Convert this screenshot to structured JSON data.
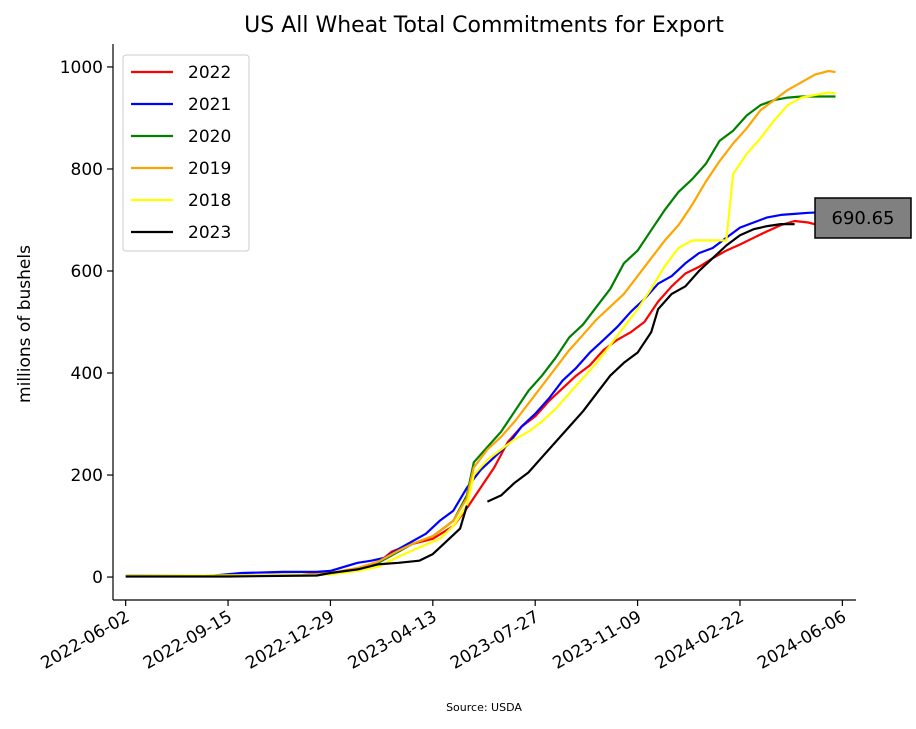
{
  "chart_data": {
    "type": "line",
    "title": "US All Wheat Total Commitments for Export",
    "xlabel": "",
    "ylabel": "millions of bushels",
    "source": "Source: USDA",
    "x_tick_labels": [
      "2022-06-02",
      "2022-09-15",
      "2022-12-29",
      "2023-04-13",
      "2023-07-27",
      "2023-11-09",
      "2024-02-22",
      "2024-06-06"
    ],
    "y_ticks": [
      0,
      200,
      400,
      600,
      800,
      1000
    ],
    "x_range": [
      "2022-05-20",
      "2024-06-20"
    ],
    "y_range": [
      -45,
      1045
    ],
    "legend_position": "upper-left",
    "grid": false,
    "last_value_label": "690.65",
    "colors": {
      "2022": "#ff0000",
      "2021": "#0000ff",
      "2020": "#008000",
      "2019": "#ffa500",
      "2018": "#ffff00",
      "2023": "#000000",
      "callout_fill": "#808080"
    },
    "series": [
      {
        "name": "2022",
        "color": "#ff0000",
        "points": [
          [
            "2022-06-02",
            2
          ],
          [
            "2022-09-15",
            3
          ],
          [
            "2022-12-01",
            5
          ],
          [
            "2022-12-29",
            8
          ],
          [
            "2023-01-26",
            15
          ],
          [
            "2023-02-16",
            28
          ],
          [
            "2023-03-02",
            50
          ],
          [
            "2023-03-23",
            65
          ],
          [
            "2023-04-13",
            75
          ],
          [
            "2023-05-04",
            100
          ],
          [
            "2023-05-18",
            135
          ],
          [
            "2023-06-01",
            175
          ],
          [
            "2023-06-15",
            215
          ],
          [
            "2023-06-29",
            265
          ],
          [
            "2023-07-13",
            295
          ],
          [
            "2023-07-27",
            315
          ],
          [
            "2023-08-10",
            345
          ],
          [
            "2023-08-24",
            370
          ],
          [
            "2023-09-07",
            395
          ],
          [
            "2023-09-21",
            415
          ],
          [
            "2023-10-05",
            445
          ],
          [
            "2023-10-19",
            465
          ],
          [
            "2023-11-02",
            480
          ],
          [
            "2023-11-16",
            500
          ],
          [
            "2023-11-30",
            540
          ],
          [
            "2023-12-14",
            570
          ],
          [
            "2023-12-28",
            595
          ],
          [
            "2024-01-11",
            608
          ],
          [
            "2024-01-25",
            625
          ],
          [
            "2024-02-08",
            640
          ],
          [
            "2024-02-22",
            652
          ],
          [
            "2024-03-07",
            665
          ],
          [
            "2024-03-21",
            678
          ],
          [
            "2024-04-04",
            690
          ],
          [
            "2024-04-18",
            698
          ],
          [
            "2024-05-02",
            695
          ],
          [
            "2024-05-16",
            688
          ],
          [
            "2024-05-30",
            690.65
          ]
        ]
      },
      {
        "name": "2021",
        "color": "#0000ff",
        "points": [
          [
            "2022-06-02",
            2
          ],
          [
            "2022-09-01",
            3
          ],
          [
            "2022-09-29",
            8
          ],
          [
            "2022-11-10",
            10
          ],
          [
            "2022-12-15",
            10
          ],
          [
            "2022-12-29",
            12
          ],
          [
            "2023-01-12",
            20
          ],
          [
            "2023-01-26",
            28
          ],
          [
            "2023-02-09",
            32
          ],
          [
            "2023-02-23",
            38
          ],
          [
            "2023-03-09",
            55
          ],
          [
            "2023-03-23",
            70
          ],
          [
            "2023-04-06",
            85
          ],
          [
            "2023-04-20",
            110
          ],
          [
            "2023-05-04",
            130
          ],
          [
            "2023-05-18",
            175
          ],
          [
            "2023-06-01",
            210
          ],
          [
            "2023-06-15",
            235
          ],
          [
            "2023-06-29",
            260
          ],
          [
            "2023-07-13",
            295
          ],
          [
            "2023-07-27",
            320
          ],
          [
            "2023-08-10",
            350
          ],
          [
            "2023-08-24",
            385
          ],
          [
            "2023-09-07",
            410
          ],
          [
            "2023-09-21",
            440
          ],
          [
            "2023-10-05",
            465
          ],
          [
            "2023-10-19",
            490
          ],
          [
            "2023-11-02",
            520
          ],
          [
            "2023-11-16",
            545
          ],
          [
            "2023-11-30",
            575
          ],
          [
            "2023-12-14",
            590
          ],
          [
            "2023-12-28",
            615
          ],
          [
            "2024-01-11",
            635
          ],
          [
            "2024-01-25",
            645
          ],
          [
            "2024-02-08",
            665
          ],
          [
            "2024-02-22",
            685
          ],
          [
            "2024-03-07",
            695
          ],
          [
            "2024-03-21",
            705
          ],
          [
            "2024-04-04",
            710
          ],
          [
            "2024-04-18",
            712
          ],
          [
            "2024-05-02",
            714
          ],
          [
            "2024-05-16",
            715
          ],
          [
            "2024-05-30",
            715
          ]
        ]
      },
      {
        "name": "2020",
        "color": "#008000",
        "points": [
          [
            "2022-06-02",
            2
          ],
          [
            "2022-09-15",
            3
          ],
          [
            "2022-12-15",
            5
          ],
          [
            "2022-12-29",
            8
          ],
          [
            "2023-01-26",
            15
          ],
          [
            "2023-02-16",
            28
          ],
          [
            "2023-03-09",
            50
          ],
          [
            "2023-03-23",
            65
          ],
          [
            "2023-04-13",
            80
          ],
          [
            "2023-05-04",
            110
          ],
          [
            "2023-05-18",
            160
          ],
          [
            "2023-05-25",
            225
          ],
          [
            "2023-06-08",
            255
          ],
          [
            "2023-06-22",
            285
          ],
          [
            "2023-07-06",
            325
          ],
          [
            "2023-07-20",
            365
          ],
          [
            "2023-08-03",
            395
          ],
          [
            "2023-08-17",
            430
          ],
          [
            "2023-08-31",
            470
          ],
          [
            "2023-09-14",
            495
          ],
          [
            "2023-09-28",
            530
          ],
          [
            "2023-10-12",
            565
          ],
          [
            "2023-10-26",
            615
          ],
          [
            "2023-11-09",
            640
          ],
          [
            "2023-11-23",
            680
          ],
          [
            "2023-12-07",
            720
          ],
          [
            "2023-12-21",
            755
          ],
          [
            "2024-01-04",
            780
          ],
          [
            "2024-01-18",
            810
          ],
          [
            "2024-02-01",
            855
          ],
          [
            "2024-02-15",
            875
          ],
          [
            "2024-02-29",
            905
          ],
          [
            "2024-03-14",
            925
          ],
          [
            "2024-03-28",
            935
          ],
          [
            "2024-04-11",
            940
          ],
          [
            "2024-04-25",
            942
          ],
          [
            "2024-05-09",
            942
          ],
          [
            "2024-05-30",
            942
          ]
        ]
      },
      {
        "name": "2019",
        "color": "#ffa500",
        "points": [
          [
            "2022-06-02",
            2
          ],
          [
            "2022-09-15",
            3
          ],
          [
            "2022-12-15",
            5
          ],
          [
            "2022-12-29",
            8
          ],
          [
            "2023-01-26",
            18
          ],
          [
            "2023-02-16",
            30
          ],
          [
            "2023-03-09",
            52
          ],
          [
            "2023-03-23",
            65
          ],
          [
            "2023-04-13",
            80
          ],
          [
            "2023-05-04",
            110
          ],
          [
            "2023-05-18",
            155
          ],
          [
            "2023-05-25",
            215
          ],
          [
            "2023-06-08",
            250
          ],
          [
            "2023-06-22",
            275
          ],
          [
            "2023-07-06",
            305
          ],
          [
            "2023-07-20",
            340
          ],
          [
            "2023-08-03",
            375
          ],
          [
            "2023-08-17",
            410
          ],
          [
            "2023-08-31",
            445
          ],
          [
            "2023-09-14",
            475
          ],
          [
            "2023-09-28",
            505
          ],
          [
            "2023-10-12",
            530
          ],
          [
            "2023-10-26",
            555
          ],
          [
            "2023-11-09",
            590
          ],
          [
            "2023-11-23",
            625
          ],
          [
            "2023-12-07",
            660
          ],
          [
            "2023-12-21",
            690
          ],
          [
            "2024-01-04",
            730
          ],
          [
            "2024-01-18",
            775
          ],
          [
            "2024-02-01",
            815
          ],
          [
            "2024-02-15",
            850
          ],
          [
            "2024-02-29",
            880
          ],
          [
            "2024-03-14",
            915
          ],
          [
            "2024-03-28",
            935
          ],
          [
            "2024-04-11",
            955
          ],
          [
            "2024-04-25",
            970
          ],
          [
            "2024-05-09",
            985
          ],
          [
            "2024-05-23",
            992
          ],
          [
            "2024-05-30",
            990
          ]
        ]
      },
      {
        "name": "2018",
        "color": "#ffff00",
        "points": [
          [
            "2022-06-02",
            2
          ],
          [
            "2022-09-15",
            3
          ],
          [
            "2022-12-29",
            5
          ],
          [
            "2023-01-26",
            12
          ],
          [
            "2023-02-16",
            20
          ],
          [
            "2023-03-09",
            40
          ],
          [
            "2023-03-30",
            58
          ],
          [
            "2023-04-20",
            75
          ],
          [
            "2023-05-04",
            100
          ],
          [
            "2023-05-18",
            140
          ],
          [
            "2023-05-25",
            200
          ],
          [
            "2023-06-08",
            230
          ],
          [
            "2023-06-22",
            250
          ],
          [
            "2023-07-06",
            270
          ],
          [
            "2023-07-20",
            285
          ],
          [
            "2023-08-03",
            305
          ],
          [
            "2023-08-17",
            330
          ],
          [
            "2023-08-31",
            360
          ],
          [
            "2023-09-14",
            390
          ],
          [
            "2023-09-28",
            420
          ],
          [
            "2023-10-12",
            455
          ],
          [
            "2023-10-26",
            490
          ],
          [
            "2023-11-09",
            525
          ],
          [
            "2023-11-23",
            565
          ],
          [
            "2023-12-07",
            610
          ],
          [
            "2023-12-21",
            645
          ],
          [
            "2024-01-04",
            660
          ],
          [
            "2024-01-18",
            660
          ],
          [
            "2024-02-01",
            660
          ],
          [
            "2024-02-08",
            660
          ],
          [
            "2024-02-15",
            790
          ],
          [
            "2024-02-29",
            830
          ],
          [
            "2024-03-14",
            860
          ],
          [
            "2024-03-28",
            895
          ],
          [
            "2024-04-11",
            925
          ],
          [
            "2024-04-25",
            940
          ],
          [
            "2024-05-09",
            945
          ],
          [
            "2024-05-23",
            950
          ],
          [
            "2024-05-30",
            948
          ]
        ]
      },
      {
        "name": "2023",
        "color": "#000000",
        "points": [
          [
            "2022-06-02",
            1
          ],
          [
            "2022-09-15",
            1
          ],
          [
            "2022-12-15",
            3
          ],
          [
            "2022-12-29",
            8
          ],
          [
            "2023-01-26",
            15
          ],
          [
            "2023-02-16",
            25
          ],
          [
            "2023-03-09",
            28
          ],
          [
            "2023-03-30",
            32
          ],
          [
            "2023-04-13",
            45
          ],
          [
            "2023-04-27",
            70
          ],
          [
            "2023-05-11",
            95
          ],
          [
            "2023-05-18",
            140
          ]
        ],
        "points_segment2": [
          [
            "2023-06-08",
            148
          ],
          [
            "2023-06-22",
            160
          ],
          [
            "2023-07-06",
            185
          ],
          [
            "2023-07-20",
            205
          ],
          [
            "2023-08-03",
            235
          ],
          [
            "2023-08-17",
            265
          ],
          [
            "2023-08-31",
            295
          ],
          [
            "2023-09-14",
            325
          ],
          [
            "2023-09-28",
            360
          ],
          [
            "2023-10-12",
            395
          ],
          [
            "2023-10-26",
            420
          ],
          [
            "2023-11-09",
            440
          ],
          [
            "2023-11-23",
            480
          ],
          [
            "2023-11-30",
            525
          ],
          [
            "2023-12-14",
            555
          ],
          [
            "2023-12-28",
            570
          ],
          [
            "2024-01-11",
            600
          ],
          [
            "2024-01-25",
            625
          ],
          [
            "2024-02-08",
            650
          ],
          [
            "2024-02-22",
            670
          ],
          [
            "2024-03-07",
            682
          ],
          [
            "2024-03-21",
            688
          ],
          [
            "2024-04-04",
            692
          ],
          [
            "2024-04-18",
            692
          ]
        ]
      }
    ]
  }
}
